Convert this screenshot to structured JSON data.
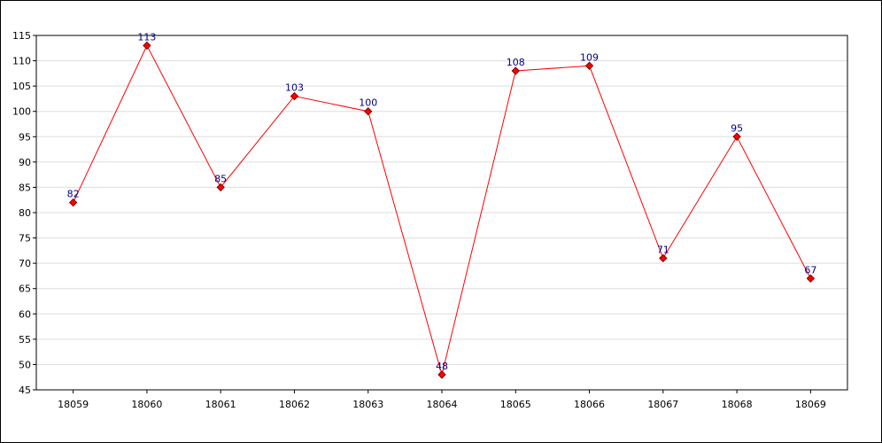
{
  "chart_data": {
    "type": "line",
    "title": "",
    "xlabel": "",
    "ylabel": "",
    "categories": [
      "18059",
      "18060",
      "18061",
      "18062",
      "18063",
      "18064",
      "18065",
      "18066",
      "18067",
      "18068",
      "18069"
    ],
    "series": [
      {
        "values": [
          82,
          113,
          85,
          103,
          100,
          48,
          108,
          109,
          71,
          95,
          67
        ],
        "color": "#ff0000",
        "marker_color": "#ff0000",
        "marker_shape": "diamond"
      }
    ],
    "ylim": [
      45,
      115
    ],
    "yticks": [
      45,
      50,
      55,
      60,
      65,
      70,
      75,
      80,
      85,
      90,
      95,
      100,
      105,
      110,
      115
    ],
    "grid": "horizontal",
    "legend": "none",
    "data_labels": true,
    "colors": {
      "grid": "#dddddd",
      "axis": "#000000",
      "data_label": "#000080"
    }
  }
}
